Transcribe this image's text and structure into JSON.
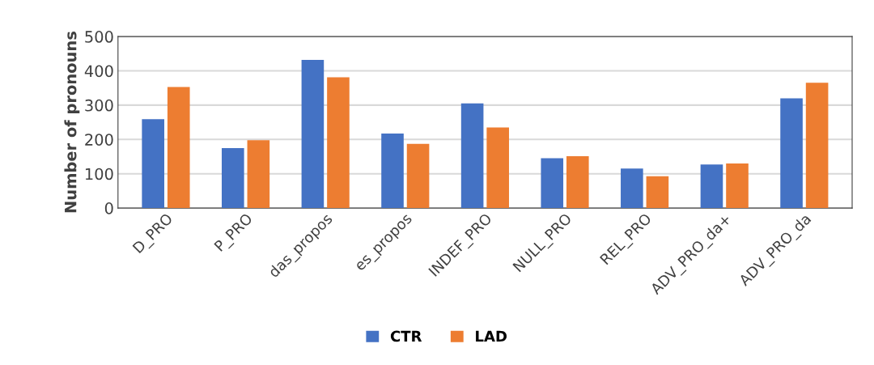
{
  "chart_data": {
    "type": "bar",
    "ylabel": "Number of pronouns",
    "categories": [
      "D_PRO",
      "P_PRO",
      "das_propos",
      "es_propos",
      "INDEF_PRO",
      "NULL_PRO",
      "REL_PRO",
      "ADV_PRO_da+",
      "ADV_PRO_da"
    ],
    "series": [
      {
        "name": "CTR",
        "color": "#4472c4",
        "values": [
          259,
          175,
          432,
          217,
          305,
          145,
          115,
          127,
          320
        ]
      },
      {
        "name": "LAD",
        "color": "#ed7d31",
        "values": [
          353,
          198,
          381,
          187,
          235,
          151,
          93,
          130,
          365
        ]
      }
    ],
    "ylim": [
      0,
      500
    ],
    "yticks": [
      0,
      100,
      200,
      300,
      400,
      500
    ],
    "grid": "y",
    "legend": "bottom"
  }
}
